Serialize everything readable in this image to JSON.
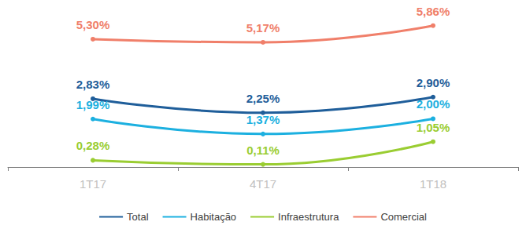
{
  "chart_data": {
    "type": "line",
    "categories": [
      "1T17",
      "4T17",
      "1T18"
    ],
    "series": [
      {
        "name": "Total",
        "color": "#1f5e9a",
        "values": [
          2.83,
          2.25,
          2.9
        ],
        "value_labels": [
          "2,83%",
          "2,25%",
          "2,90%"
        ]
      },
      {
        "name": "Habitação",
        "color": "#1cb0e0",
        "values": [
          1.99,
          1.37,
          2.0
        ],
        "value_labels": [
          "1,99%",
          "1,37%",
          "2,00%"
        ]
      },
      {
        "name": "Infraestrutura",
        "color": "#9acd32",
        "values": [
          0.28,
          0.11,
          1.05
        ],
        "value_labels": [
          "0,28%",
          "0,11%",
          "1,05%"
        ]
      },
      {
        "name": "Comercial",
        "color": "#f07f6a",
        "values": [
          5.3,
          5.17,
          5.86
        ],
        "value_labels": [
          "5,30%",
          "5,17%",
          "5,86%"
        ]
      }
    ],
    "ylim": [
      0,
      6.5
    ],
    "grid": false,
    "legend": "bottom",
    "data_labels": true,
    "tick_labels": "x",
    "marker": "circle",
    "line_style": "smooth"
  }
}
